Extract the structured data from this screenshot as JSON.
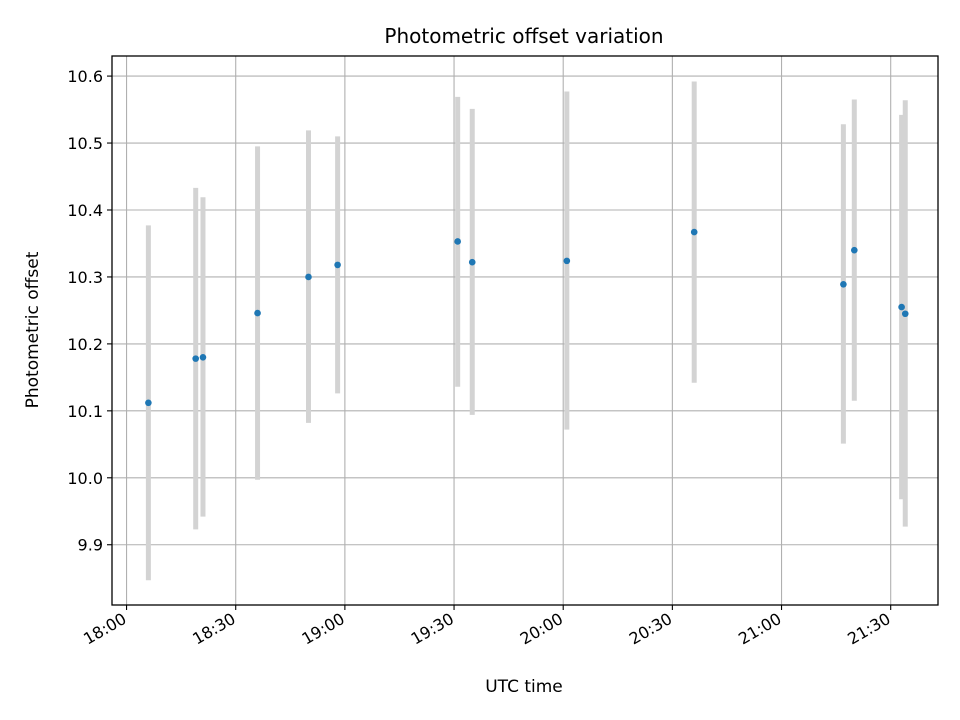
{
  "chart_data": {
    "type": "scatter",
    "title": "Photometric offset variation",
    "xlabel": "UTC time",
    "ylabel": "Photometric offset",
    "x_axis_kind": "time",
    "xlim": [
      "17:56",
      "21:43"
    ],
    "ylim": [
      9.81,
      10.63
    ],
    "x_ticks": [
      "18:00",
      "18:30",
      "19:00",
      "19:30",
      "20:00",
      "20:30",
      "21:00",
      "21:30"
    ],
    "y_ticks": [
      9.9,
      10.0,
      10.1,
      10.2,
      10.3,
      10.4,
      10.5,
      10.6
    ],
    "grid": true,
    "colors": {
      "points": "#1f77b4",
      "error_bars": "#d3d3d3",
      "grid": "#b0b0b0"
    },
    "series": [
      {
        "points": [
          {
            "x": "18:06",
            "y": 10.112,
            "ylow": 9.847,
            "yhigh": 10.377
          },
          {
            "x": "18:19",
            "y": 10.178,
            "ylow": 9.923,
            "yhigh": 10.433
          },
          {
            "x": "18:21",
            "y": 10.18,
            "ylow": 9.942,
            "yhigh": 10.419
          },
          {
            "x": "18:36",
            "y": 10.246,
            "ylow": 9.997,
            "yhigh": 10.495
          },
          {
            "x": "18:50",
            "y": 10.3,
            "ylow": 10.082,
            "yhigh": 10.519
          },
          {
            "x": "18:58",
            "y": 10.318,
            "ylow": 10.126,
            "yhigh": 10.51
          },
          {
            "x": "19:31",
            "y": 10.353,
            "ylow": 10.136,
            "yhigh": 10.569
          },
          {
            "x": "19:35",
            "y": 10.322,
            "ylow": 10.094,
            "yhigh": 10.551
          },
          {
            "x": "20:01",
            "y": 10.324,
            "ylow": 10.072,
            "yhigh": 10.577
          },
          {
            "x": "20:36",
            "y": 10.367,
            "ylow": 10.142,
            "yhigh": 10.592
          },
          {
            "x": "21:17",
            "y": 10.289,
            "ylow": 10.051,
            "yhigh": 10.528
          },
          {
            "x": "21:20",
            "y": 10.34,
            "ylow": 10.115,
            "yhigh": 10.565
          },
          {
            "x": "21:33",
            "y": 10.255,
            "ylow": 9.968,
            "yhigh": 10.542
          },
          {
            "x": "21:34",
            "y": 10.245,
            "ylow": 9.927,
            "yhigh": 10.564
          }
        ]
      }
    ]
  }
}
